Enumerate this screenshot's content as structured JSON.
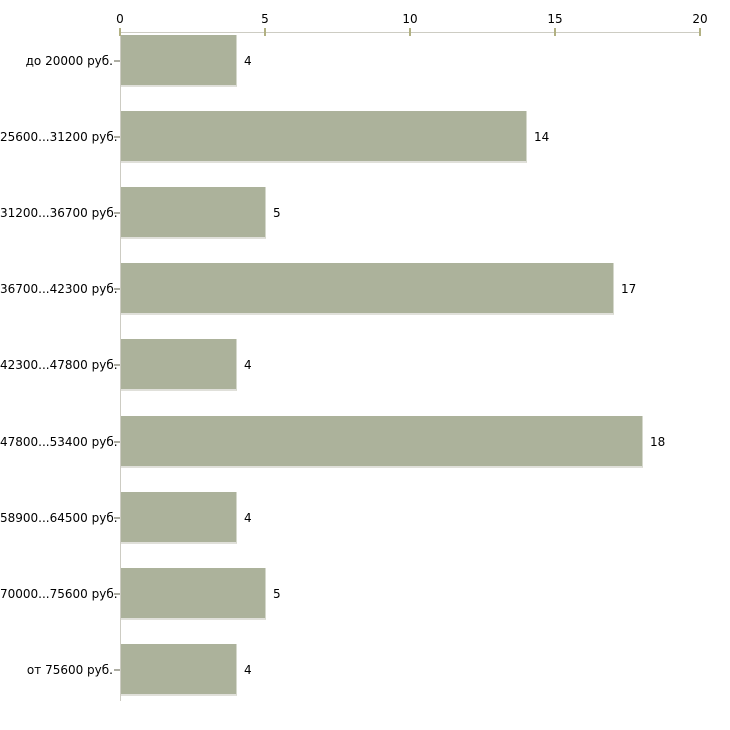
{
  "chart_data": {
    "type": "bar",
    "orientation": "horizontal",
    "title": "",
    "xlabel": "",
    "ylabel": "",
    "categories": [
      "до 20000 руб.",
      "25600...31200 руб.",
      "31200...36700 руб.",
      "36700...42300 руб.",
      "42300...47800 руб.",
      "47800...53400 руб.",
      "58900...64500 руб.",
      "70000...75600 руб.",
      "от 75600 руб."
    ],
    "values": [
      4,
      14,
      5,
      17,
      4,
      18,
      4,
      5,
      4
    ],
    "xlim": [
      0,
      20
    ],
    "x_ticks": [
      "0",
      "5",
      "10",
      "15",
      "20"
    ],
    "x_tick_values": [
      0,
      5,
      10,
      15,
      20
    ],
    "axis_position": "top",
    "grid": false,
    "legend": "none",
    "colors": {
      "bar": "#acb29b",
      "axis_line": "#cdccc3",
      "x_tick": "#b2b183",
      "y_tick": "#adada3",
      "text": "#000000",
      "background": "#ffffff"
    }
  }
}
